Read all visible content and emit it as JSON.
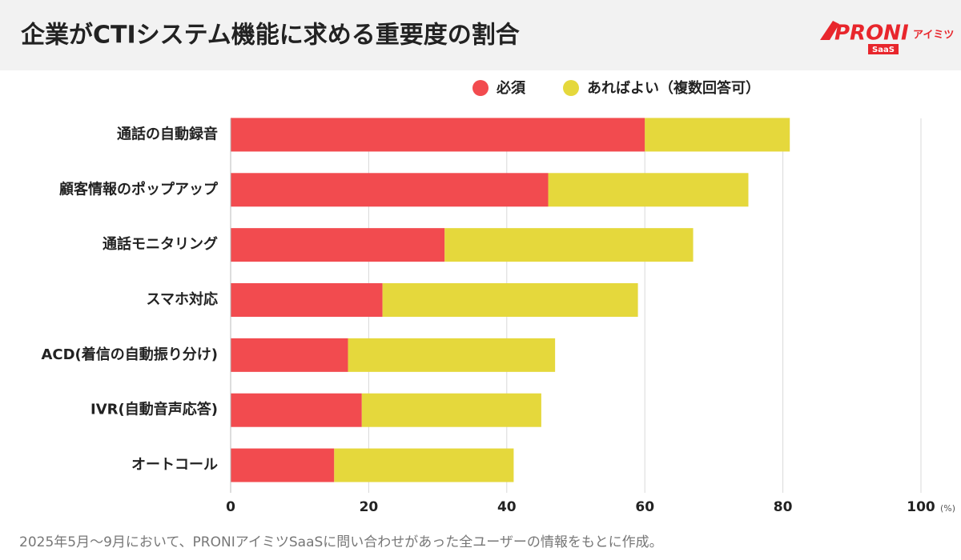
{
  "chart_data": {
    "type": "stacked-barh",
    "title": "企業がCTIシステム機能に求める重要度の割合",
    "categories": [
      "通話の自動録音",
      "顧客情報のポップアップ",
      "通話モニタリング",
      "スマホ対応",
      "ACD(着信の自動振り分け)",
      "IVR(自動音声応答)",
      "オートコール"
    ],
    "series": [
      {
        "name": "必須",
        "color": "#f24b4f",
        "values": [
          60,
          46,
          31,
          22,
          17,
          19,
          15
        ]
      },
      {
        "name": "あればよい（複数回答可）",
        "color": "#e5d83c",
        "values": [
          21,
          29,
          36,
          37,
          30,
          26,
          26
        ]
      }
    ],
    "xlim": [
      0,
      100
    ],
    "xticks": [
      0,
      20,
      40,
      60,
      80,
      100
    ],
    "x_unit": "(%)",
    "grid": true,
    "note": "2025年5月〜9月において、PRONIアイミツSaaSに問い合わせがあった全ユーザーの情報をもとに作成。"
  },
  "logo": {
    "text": "PRONI",
    "sub": "アイミツ",
    "badge": "SaaS"
  }
}
